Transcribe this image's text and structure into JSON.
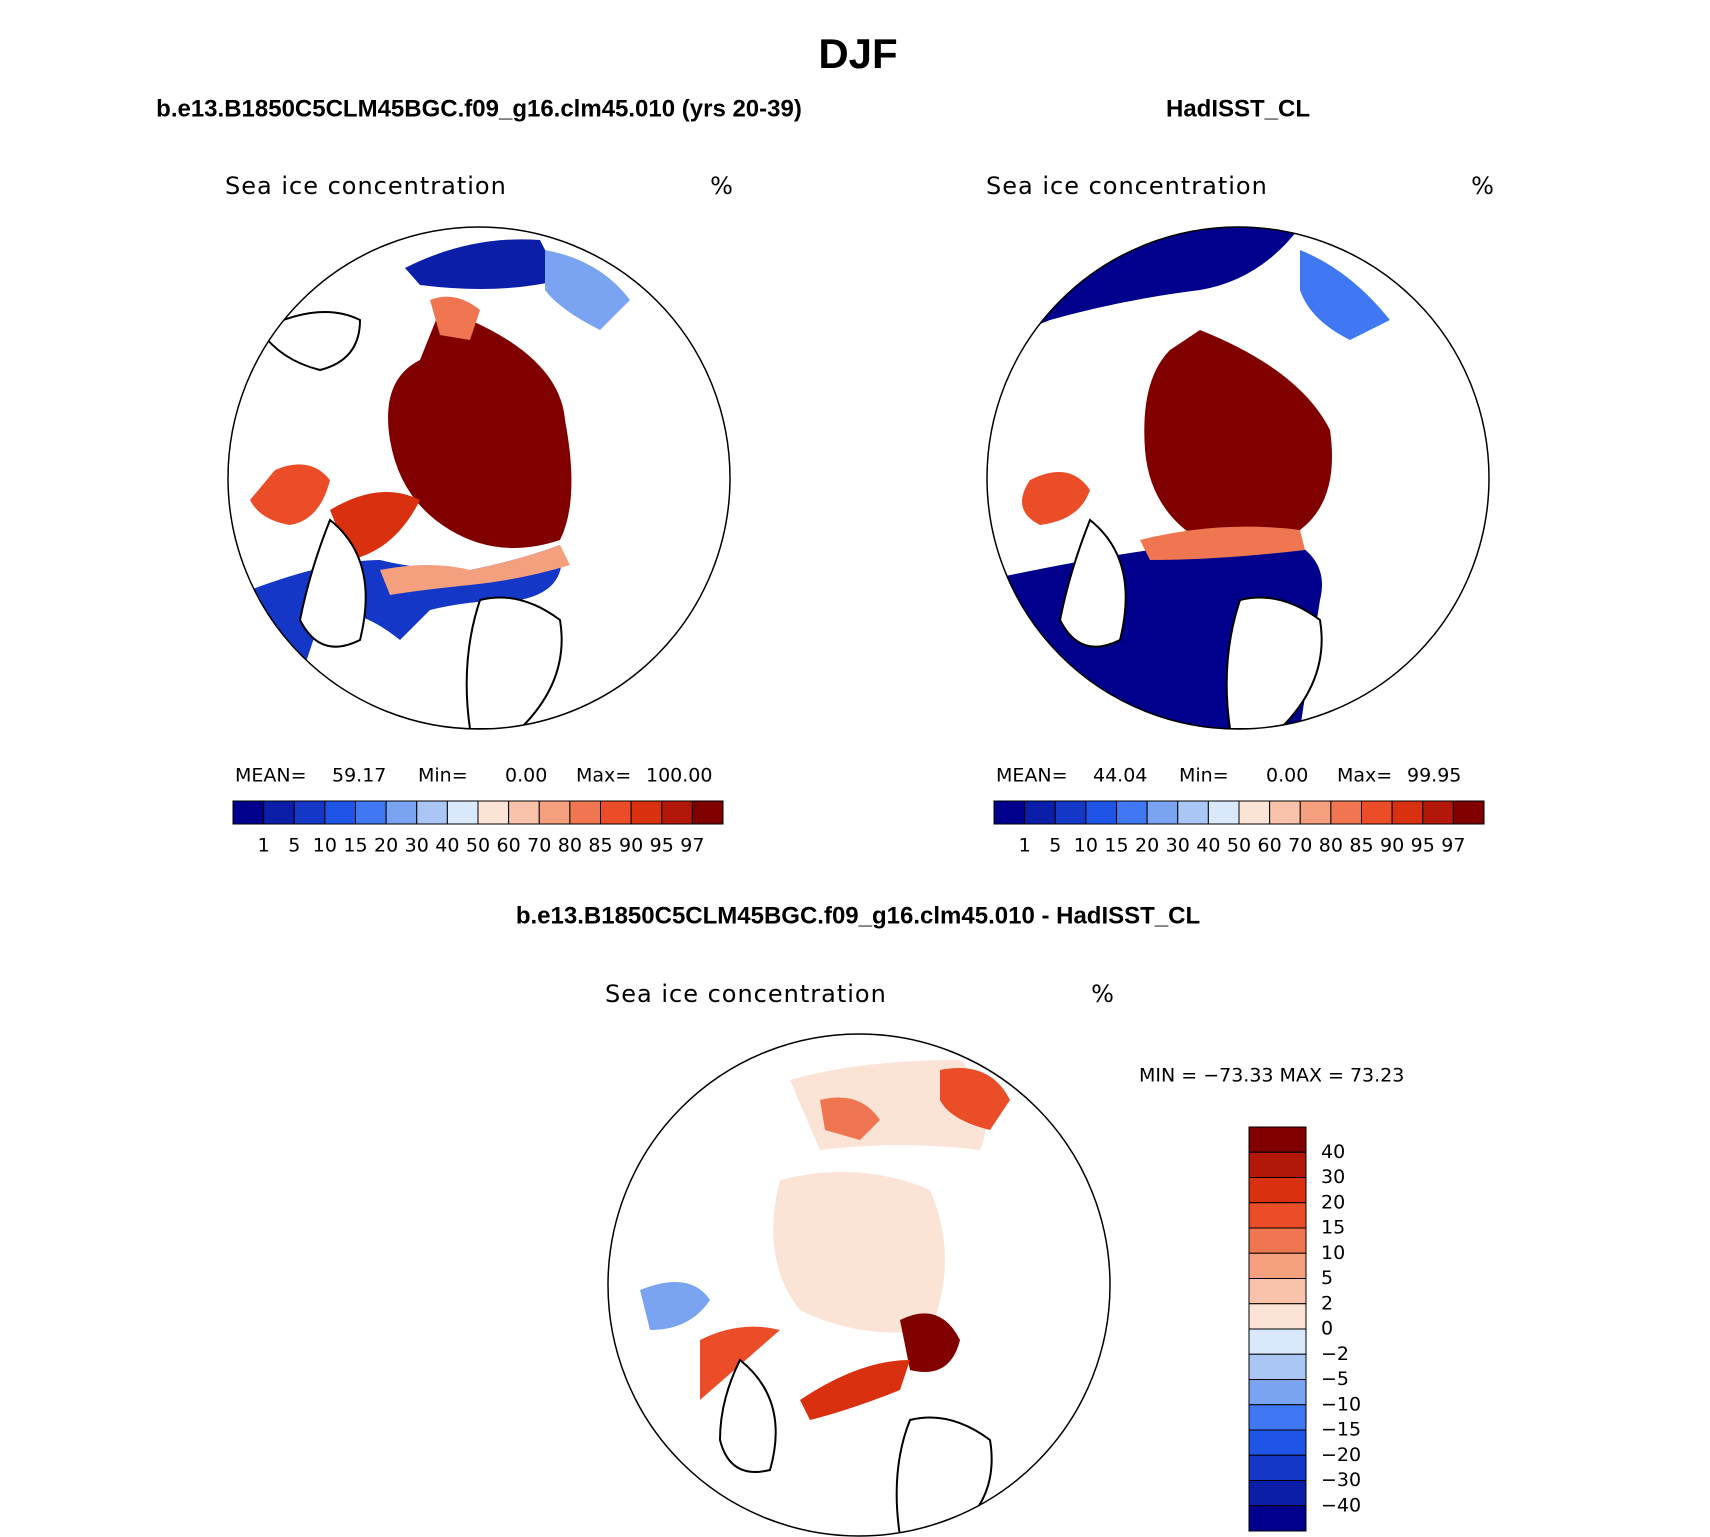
{
  "title": "DJF",
  "panels": [
    {
      "title": "b.e13.B1850C5CLM45BGC.f09_g16.clm45.010 (yrs 20-39)",
      "variable": "Sea ice concentration",
      "units": "%",
      "stats": [
        "MEAN=",
        "59.17",
        "Min=",
        "0.00",
        "Max=",
        "100.00"
      ],
      "colorbar": {
        "labels": [
          "1",
          "5",
          "10",
          "15",
          "20",
          "30",
          "40",
          "50",
          "60",
          "70",
          "80",
          "85",
          "90",
          "95",
          "97"
        ],
        "colors": [
          "#00008c",
          "#0a1ea8",
          "#1437c8",
          "#1f55e6",
          "#3f78f2",
          "#7aa3f2",
          "#aac6f5",
          "#d9e8fa",
          "#fbe3d5",
          "#f8c3aa",
          "#f4a07e",
          "#ef7650",
          "#ea4d28",
          "#d9300f",
          "#b3170a",
          "#800000"
        ]
      }
    },
    {
      "title": "HadISST_CL",
      "variable": "Sea ice concentration",
      "units": "%",
      "stats": [
        "MEAN=",
        "44.04",
        "Min=",
        "0.00",
        "Max=",
        "99.95"
      ],
      "colorbar": {
        "labels": [
          "1",
          "5",
          "10",
          "15",
          "20",
          "30",
          "40",
          "50",
          "60",
          "70",
          "80",
          "85",
          "90",
          "95",
          "97"
        ],
        "colors": [
          "#00008c",
          "#0a1ea8",
          "#1437c8",
          "#1f55e6",
          "#3f78f2",
          "#7aa3f2",
          "#aac6f5",
          "#d9e8fa",
          "#fbe3d5",
          "#f8c3aa",
          "#f4a07e",
          "#ef7650",
          "#ea4d28",
          "#d9300f",
          "#b3170a",
          "#800000"
        ]
      }
    },
    {
      "title": "b.e13.B1850C5CLM45BGC.f09_g16.clm45.010 - HadISST_CL",
      "variable": "Sea ice concentration",
      "units": "%",
      "stats": [
        "MIN = −73.33 MAX =  73.23"
      ],
      "colorbar": {
        "labels": [
          "40",
          "30",
          "20",
          "15",
          "10",
          "5",
          "2",
          "0",
          "−2",
          "−5",
          "−10",
          "−15",
          "−20",
          "−30",
          "−40"
        ],
        "colors": [
          "#800000",
          "#b3170a",
          "#d9300f",
          "#ea4d28",
          "#ef7650",
          "#f4a07e",
          "#f8c3aa",
          "#fbe3d5",
          "#d9e8fa",
          "#aac6f5",
          "#7aa3f2",
          "#3f78f2",
          "#1f55e6",
          "#1437c8",
          "#0a1ea8",
          "#00008c"
        ]
      }
    }
  ]
}
